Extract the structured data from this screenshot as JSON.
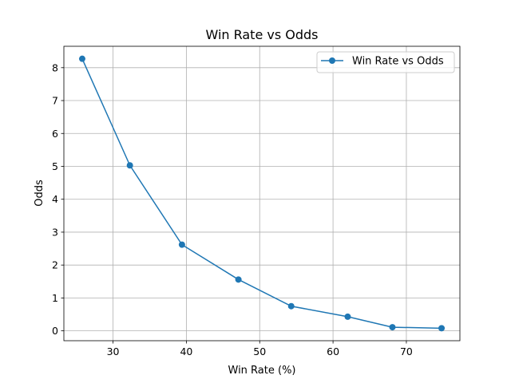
{
  "chart_data": {
    "type": "line",
    "title": "Win Rate vs Odds",
    "xlabel": "Win Rate (%)",
    "ylabel": "Odds",
    "xlim": [
      23.3,
      77.3
    ],
    "ylim": [
      -0.3,
      8.65
    ],
    "xticks": [
      30,
      40,
      50,
      60,
      70
    ],
    "yticks": [
      0,
      1,
      2,
      3,
      4,
      5,
      6,
      7,
      8
    ],
    "grid": true,
    "legend_position": "upper right",
    "series": [
      {
        "name": "Win Rate vs Odds",
        "color": "#1f77b4",
        "marker": "circle",
        "x": [
          25.8,
          32.3,
          39.4,
          47.1,
          54.3,
          62.0,
          68.1,
          74.8
        ],
        "y": [
          8.27,
          5.03,
          2.62,
          1.56,
          0.75,
          0.43,
          0.11,
          0.08
        ]
      }
    ]
  }
}
